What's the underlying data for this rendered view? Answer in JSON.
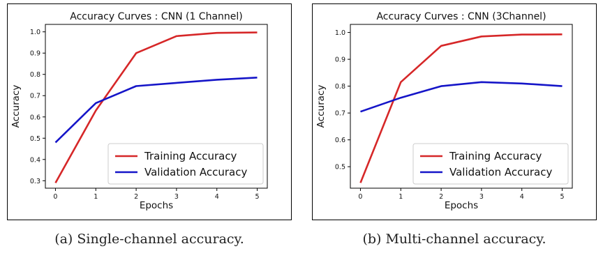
{
  "colors": {
    "training": "#d62728",
    "validation": "#1515c8"
  },
  "charts": [
    {
      "caption": "(a) Single-channel accuracy.",
      "chart_data": {
        "type": "line",
        "title": "Accuracy Curves : CNN (1 Channel)",
        "xlabel": "Epochs",
        "ylabel": "Accuracy",
        "x": [
          0,
          1,
          2,
          3,
          4,
          5
        ],
        "xticks": [
          "0",
          "1",
          "2",
          "3",
          "4",
          "5"
        ],
        "yticks": [
          0.3,
          0.4,
          0.5,
          0.6,
          0.7,
          0.8,
          0.9,
          1.0
        ],
        "ytick_labels": [
          "0.3",
          "0.4",
          "0.5",
          "0.6",
          "0.7",
          "0.8",
          "0.9",
          "1.0"
        ],
        "xlim": [
          -0.25,
          5.25
        ],
        "ylim": [
          0.265,
          1.035
        ],
        "grid": false,
        "legend_position": "bottom-right",
        "series": [
          {
            "name": "Training Accuracy",
            "color": "#d62728",
            "values": [
              0.29,
              0.63,
              0.9,
              0.98,
              0.995,
              0.997
            ]
          },
          {
            "name": "Validation Accuracy",
            "color": "#1515c8",
            "values": [
              0.48,
              0.665,
              0.745,
              0.76,
              0.775,
              0.785
            ]
          }
        ]
      }
    },
    {
      "caption": "(b) Multi-channel accuracy.",
      "chart_data": {
        "type": "line",
        "title": "Accuracy Curves : CNN (3Channel)",
        "xlabel": "Epochs",
        "ylabel": "Accuracy",
        "x": [
          0,
          1,
          2,
          3,
          4,
          5
        ],
        "xticks": [
          "0",
          "1",
          "2",
          "3",
          "4",
          "5"
        ],
        "yticks": [
          0.5,
          0.6,
          0.7,
          0.8,
          0.9,
          1.0
        ],
        "ytick_labels": [
          "0.5",
          "0.6",
          "0.7",
          "0.8",
          "0.9",
          "1.0"
        ],
        "xlim": [
          -0.25,
          5.25
        ],
        "ylim": [
          0.42,
          1.03
        ],
        "grid": false,
        "legend_position": "bottom-right",
        "series": [
          {
            "name": "Training Accuracy",
            "color": "#d62728",
            "values": [
              0.44,
              0.815,
              0.95,
              0.985,
              0.992,
              0.993
            ]
          },
          {
            "name": "Validation Accuracy",
            "color": "#1515c8",
            "values": [
              0.705,
              0.757,
              0.8,
              0.815,
              0.81,
              0.8
            ]
          }
        ]
      }
    }
  ]
}
